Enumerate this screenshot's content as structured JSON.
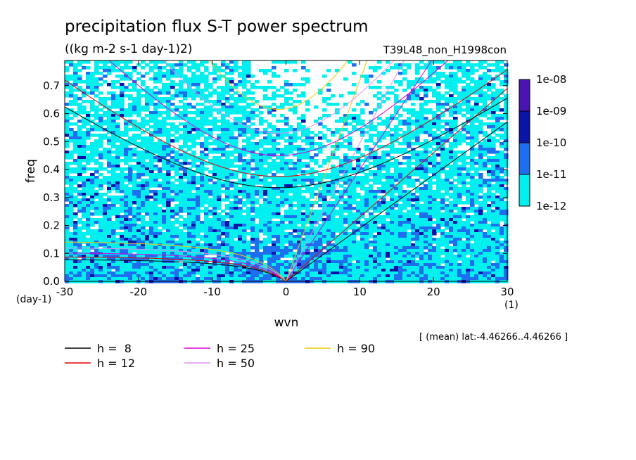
{
  "chart_data": {
    "type": "heatmap",
    "title": "precipitation flux S-T power spectrum",
    "subtitle": "((kg m-2 s-1 day-1)2)",
    "run_label": "T39L48_non_H1998con",
    "xlabel": "wvn",
    "ylabel": "freq",
    "x_unit": "(1)",
    "y_unit": "(day-1)",
    "xlim": [
      -30,
      30
    ],
    "ylim": [
      0,
      0.79
    ],
    "x_ticks": [
      "-30",
      "-20",
      "-10",
      "0",
      "10",
      "20",
      "30"
    ],
    "y_ticks": [
      "0.0",
      "0.1",
      "0.2",
      "0.3",
      "0.4",
      "0.5",
      "0.6",
      "0.7"
    ],
    "colorbar": {
      "labels": [
        "1e-08",
        "1e-09",
        "1e-10",
        "1e-11",
        "1e-12"
      ],
      "colors": [
        "#4a14b4",
        "#0a14a8",
        "#1e6ef0",
        "#00f0f0"
      ]
    },
    "annotation": "[ (mean) lat:-4.46266..4.46266 ]",
    "legend": [
      {
        "label": "h =  8",
        "color": "#000000"
      },
      {
        "label": "h = 25",
        "color": "#d800d8"
      },
      {
        "label": "h = 90",
        "color": "#f0c800"
      },
      {
        "label": "h = 12",
        "color": "#e00000"
      },
      {
        "label": "h = 50",
        "color": "#e090f0"
      }
    ],
    "curves": {
      "kelvin_slope": [
        {
          "h": 8,
          "freq_at_wvn30": 0.57
        },
        {
          "h": 12,
          "freq_at_wvn30": 0.69
        },
        {
          "h": 25,
          "freq_at_wvn18": 0.72
        },
        {
          "h": 50,
          "freq_at_wvn16": 0.79
        },
        {
          "h": 90,
          "freq_at_wvn11": 0.79
        }
      ],
      "inertia_gravity_min_freq": [
        {
          "h": 8,
          "freq_at_wvn0": 0.335
        },
        {
          "h": 12,
          "freq_at_wvn0": 0.375
        },
        {
          "h": 25,
          "freq_at_wvn0": 0.45
        },
        {
          "h": 50,
          "freq_at_wvn0": 0.53
        },
        {
          "h": 90,
          "freq_at_wvn0": 0.615
        }
      ]
    }
  }
}
